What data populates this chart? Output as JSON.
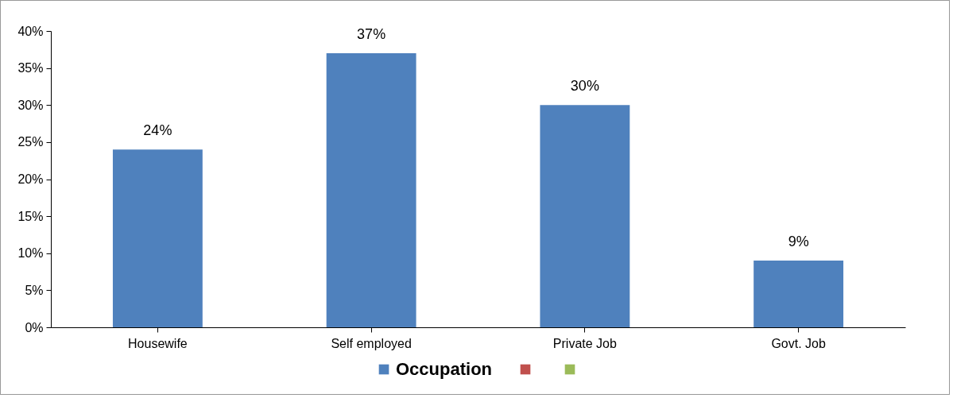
{
  "chart_data": {
    "type": "bar",
    "categories": [
      "Housewife",
      "Self employed",
      "Private Job",
      "Govt. Job"
    ],
    "series": [
      {
        "name": "Occupation",
        "color": "#4f81bd",
        "values": [
          24,
          37,
          30,
          9
        ],
        "value_labels": [
          "24%",
          "37%",
          "30%",
          "9%"
        ]
      },
      {
        "color": "#c0504d",
        "values": [
          null,
          null,
          null,
          null
        ]
      },
      {
        "color": "#9bbb59",
        "values": [
          null,
          null,
          null,
          null
        ]
      }
    ],
    "ylim": [
      0,
      40
    ],
    "yticks": [
      {
        "value": 0,
        "label": "0%"
      },
      {
        "value": 5,
        "label": "5%"
      },
      {
        "value": 10,
        "label": "10%"
      },
      {
        "value": 15,
        "label": "15%"
      },
      {
        "value": 20,
        "label": "20%"
      },
      {
        "value": 25,
        "label": "25%"
      },
      {
        "value": 30,
        "label": "30%"
      },
      {
        "value": 35,
        "label": "35%"
      },
      {
        "value": 40,
        "label": "40%"
      }
    ],
    "grid": false,
    "legend": "bottom"
  }
}
